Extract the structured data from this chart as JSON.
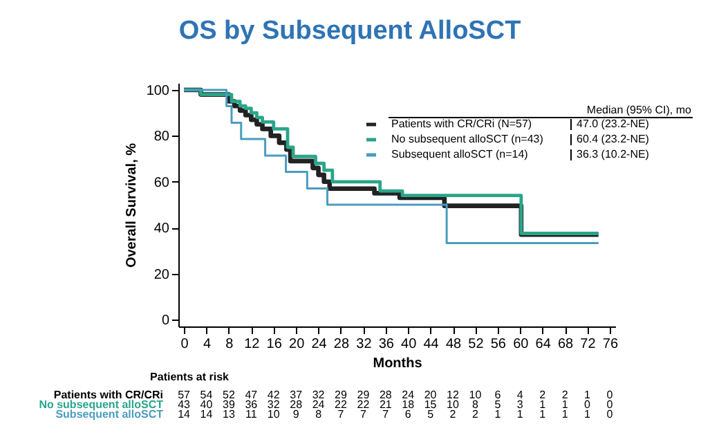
{
  "chart_data": {
    "type": "step",
    "title": "OS by Subsequent AlloSCT",
    "xlabel": "Months",
    "ylabel": "Overall Survival, %",
    "legend_title": "Median (95% CI), mo",
    "legend": "right",
    "grid": false,
    "line_style": "solid",
    "xlim": [
      -1,
      77
    ],
    "xticks": [
      0,
      4,
      8,
      12,
      16,
      20,
      24,
      28,
      32,
      36,
      40,
      44,
      48,
      52,
      56,
      60,
      64,
      68,
      72,
      76
    ],
    "ylim": [
      -3,
      103
    ],
    "yticks": [
      0,
      20,
      40,
      60,
      80,
      100
    ],
    "series": [
      {
        "name": "Patients with CR/CRi (N=57)",
        "color": "#222222",
        "x": [
          0,
          3,
          8,
          9,
          10,
          11,
          12,
          13,
          14,
          15.5,
          17,
          18.3,
          19,
          23,
          24,
          25,
          26,
          34,
          38.5,
          46.5,
          60.2,
          74
        ],
        "values": [
          100,
          98,
          95,
          93,
          91,
          89,
          87,
          85,
          83,
          80,
          77,
          74,
          69,
          66,
          63,
          60,
          57,
          55,
          53,
          49.5,
          37,
          37
        ]
      },
      {
        "name": "No subsequent alloSCT (n=43)",
        "color": "#2aa58a",
        "x": [
          0,
          3,
          8.5,
          10,
          11,
          12,
          13,
          14,
          16,
          18.5,
          19.5,
          23.5,
          25,
          26.5,
          35,
          39,
          60.2,
          74
        ],
        "values": [
          100,
          98,
          95,
          93,
          92,
          90,
          88,
          86,
          83,
          75,
          71,
          68,
          65,
          60,
          56,
          54,
          37.5,
          37.5
        ]
      },
      {
        "name": "Subsequent alloSCT (n=14)",
        "color": "#4a9cc0",
        "x": [
          0,
          7.6,
          8.5,
          10.2,
          14.5,
          18.2,
          22,
          25.6,
          46.9,
          74
        ],
        "values": [
          100,
          92.9,
          85.7,
          78.6,
          71.4,
          64.3,
          57.1,
          50,
          33.3,
          33.3
        ]
      }
    ],
    "annotations": [
      "Patients at risk",
      "Patients with CR/CRi",
      "No subsequent alloSCT",
      "Subsequent alloSCT",
      "57 54 52 47 42 37 32 29 29 28 24 20 12 10 6 4 2 2 1 0",
      "43 40 39 36 32 28 24 22 22 21 18 15 10 8 5 3 1 1 0 0",
      "14 14 13 11 10 9 8 7 7 7 6 5 2 2 1 1 1 1 1 0",
      "47.0 (23.2-NE)",
      "60.4 (23.2-NE)",
      "36.3 (10.2-NE)"
    ]
  }
}
